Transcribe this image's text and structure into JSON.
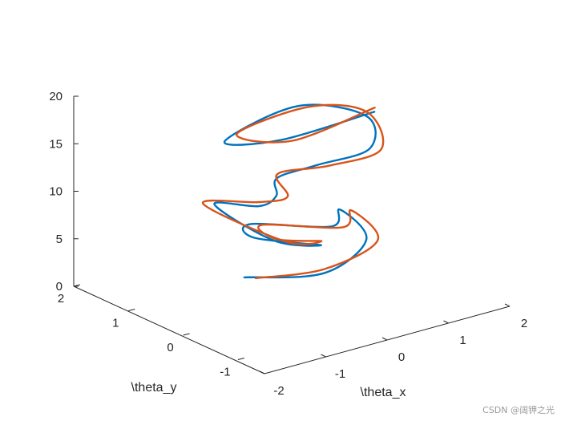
{
  "chart_data": {
    "type": "line",
    "title": "",
    "xlabel": "\\theta_x",
    "ylabel": "\\theta_y",
    "zlabel": "",
    "x_ticks": [
      "-2",
      "-1",
      "0",
      "1",
      "2"
    ],
    "y_ticks": [
      "-1",
      "0",
      "1",
      "2"
    ],
    "z_ticks": [
      "0",
      "5",
      "10",
      "15",
      "20"
    ],
    "xlim": [
      -2,
      2
    ],
    "ylim": [
      -1.5,
      2
    ],
    "zlim": [
      0,
      20
    ],
    "grid": false,
    "colors": [
      "#0072BD",
      "#D95319"
    ],
    "series": [
      {
        "z": [
          1.0,
          2.0,
          3.0,
          4.0,
          5.0,
          6.0,
          7.0,
          8.0,
          9.0,
          10.0,
          11.0,
          12.0,
          13.0,
          14.0,
          15.0,
          16.0,
          17.0,
          18.0,
          19.0,
          20.0
        ],
        "x": [
          -0.2,
          0.5,
          1.5,
          1.7,
          1.0,
          0.0,
          -0.5,
          -0.2,
          -0.8,
          -0.8,
          -0.6,
          -0.4,
          -0.2,
          0.3,
          1.0,
          1.5,
          0.8,
          -1.0,
          -0.6,
          0.8
        ],
        "y": [
          0.9,
          0.2,
          0.5,
          1.2,
          0.6,
          1.0,
          0.4,
          -0.5,
          -0.3,
          0.8,
          0.2,
          0.1,
          0.3,
          0.1,
          -0.1,
          0.5,
          1.0,
          0.4,
          -0.2,
          -0.4
        ]
      },
      {
        "z": [
          1.0,
          2.0,
          3.0,
          4.0,
          5.0,
          6.0,
          7.0,
          8.0,
          9.0,
          10.0,
          11.0,
          12.0,
          13.0,
          14.0,
          15.0,
          16.0,
          17.0,
          18.0,
          19.0,
          20.0
        ],
        "x": [
          -0.1,
          0.6,
          1.6,
          1.8,
          1.1,
          0.1,
          -0.3,
          -0.1,
          -0.7,
          -0.9,
          -0.5,
          -0.3,
          -0.1,
          0.4,
          1.1,
          1.6,
          0.9,
          -0.7,
          -0.5,
          0.9
        ],
        "y": [
          0.8,
          0.3,
          0.4,
          1.1,
          0.5,
          0.9,
          0.2,
          -0.4,
          -0.4,
          0.9,
          0.3,
          0.0,
          0.4,
          0.0,
          -0.2,
          0.6,
          0.9,
          0.5,
          -0.3,
          -0.3
        ]
      }
    ]
  },
  "watermark": "CSDN @阔钾之光"
}
